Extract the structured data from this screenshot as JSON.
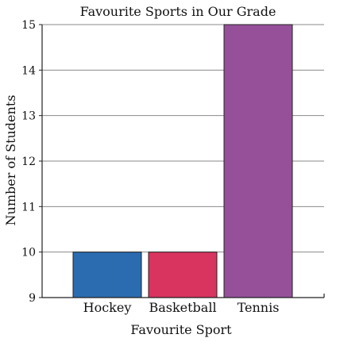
{
  "chart_data": {
    "type": "bar",
    "title": "Favourite Sports in Our Grade",
    "xlabel": "Favourite Sport",
    "ylabel": "Number of Students",
    "categories": [
      "Hockey",
      "Basketball",
      "Tennis"
    ],
    "values": [
      10,
      10,
      15
    ],
    "ylim": [
      9,
      15
    ],
    "yticks": [
      "9",
      "10",
      "11",
      "12",
      "13",
      "14",
      "15"
    ],
    "grid": true,
    "colors": [
      "#2b6cb0",
      "#d9345f",
      "#96509a"
    ],
    "stroke_color": "#222222",
    "grid_color": "#8a8a8a"
  }
}
